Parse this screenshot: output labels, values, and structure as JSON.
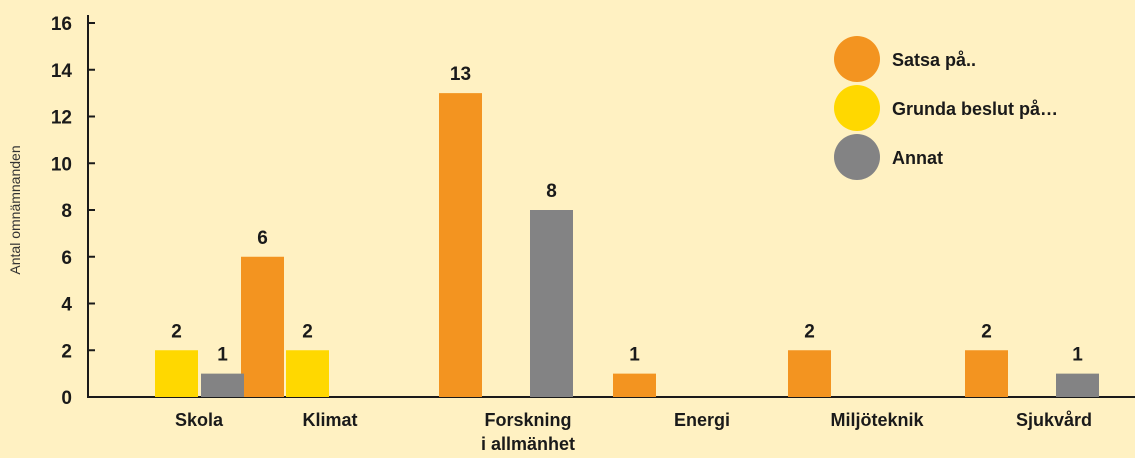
{
  "chart_data": {
    "type": "bar",
    "ylabel": "Antal omnämnanden",
    "xlabel": "",
    "ylim": [
      0,
      16
    ],
    "yticks": [
      0,
      2,
      4,
      6,
      8,
      10,
      12,
      14,
      16
    ],
    "categories": [
      [
        "Skola"
      ],
      [
        "Klimat"
      ],
      [
        "Forskning",
        "i allmänhet"
      ],
      [
        "Energi"
      ],
      [
        "Miljöteknik"
      ],
      [
        "Sjukvård"
      ]
    ],
    "series": [
      {
        "name": "Satsa på..",
        "color": "#f39420",
        "values": [
          null,
          6,
          13,
          1,
          2,
          2
        ]
      },
      {
        "name": "Grunda beslut på…",
        "color": "#ffd800",
        "values": [
          2,
          2,
          null,
          null,
          null,
          null
        ]
      },
      {
        "name": "Annat",
        "color": "#838384",
        "values": [
          1,
          null,
          8,
          null,
          null,
          1
        ]
      }
    ],
    "legend_position": "top-right",
    "grid": false
  },
  "colors": {
    "background": "#fff1c2",
    "axis": "#1a1a1a"
  }
}
